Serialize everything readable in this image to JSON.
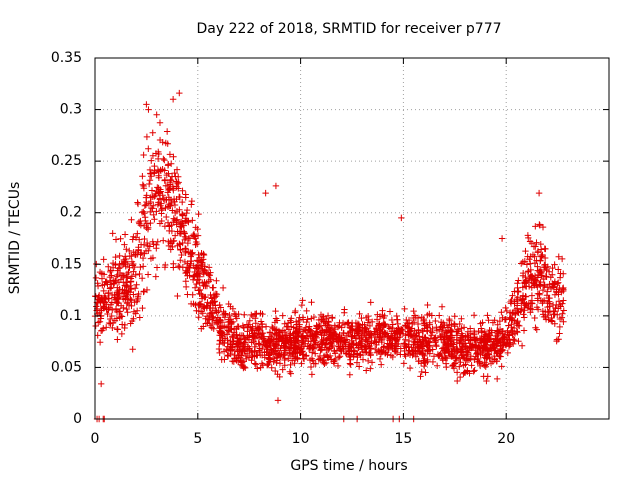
{
  "chart_data": {
    "type": "scatter",
    "title": "Day 222 of 2018, SRMTID for receiver p777",
    "xlabel": "GPS time / hours",
    "ylabel": "SRMTID / TECUs",
    "xlim": [
      0,
      25
    ],
    "ylim": [
      0,
      0.35
    ],
    "x_ticks": [
      0,
      5,
      10,
      15,
      20
    ],
    "x_tick_labels": [
      "0",
      "5",
      "10",
      "15",
      "20"
    ],
    "y_ticks": [
      0,
      0.05,
      0.1,
      0.15,
      0.2,
      0.25,
      0.3,
      0.35
    ],
    "y_tick_labels": [
      "0",
      "0.05",
      "0.1",
      "0.15",
      "0.2",
      "0.25",
      "0.3",
      "0.35"
    ],
    "grid": true,
    "marker": "+",
    "color": "#e00000",
    "series": [
      {
        "name": "SRMTID",
        "profile": {
          "hours": [
            0,
            0.5,
            1,
            1.5,
            2,
            2.5,
            3,
            3.5,
            4,
            4.5,
            5,
            5.5,
            6,
            7,
            8,
            9,
            10,
            11,
            12,
            13,
            14,
            15,
            16,
            17,
            18,
            19,
            19.5,
            20,
            20.5,
            21,
            21.5,
            22,
            22.5,
            22.8
          ],
          "median": [
            0.11,
            0.12,
            0.12,
            0.13,
            0.14,
            0.2,
            0.22,
            0.21,
            0.2,
            0.16,
            0.14,
            0.12,
            0.09,
            0.075,
            0.075,
            0.07,
            0.075,
            0.08,
            0.075,
            0.075,
            0.08,
            0.08,
            0.075,
            0.075,
            0.07,
            0.07,
            0.07,
            0.08,
            0.1,
            0.13,
            0.14,
            0.13,
            0.12,
            0.12
          ],
          "spread": [
            0.03,
            0.035,
            0.04,
            0.04,
            0.05,
            0.06,
            0.06,
            0.05,
            0.045,
            0.04,
            0.035,
            0.03,
            0.025,
            0.022,
            0.022,
            0.022,
            0.022,
            0.022,
            0.022,
            0.022,
            0.022,
            0.022,
            0.022,
            0.022,
            0.02,
            0.02,
            0.02,
            0.025,
            0.03,
            0.035,
            0.04,
            0.035,
            0.035,
            0.03
          ],
          "samples": 2600,
          "x_range": [
            0,
            22.8
          ]
        },
        "notable_points": [
          {
            "x": 2.5,
            "y": 0.305
          },
          {
            "x": 2.6,
            "y": 0.3
          },
          {
            "x": 3.8,
            "y": 0.31
          },
          {
            "x": 4.1,
            "y": 0.316
          },
          {
            "x": 3.0,
            "y": 0.295
          },
          {
            "x": 8.3,
            "y": 0.219
          },
          {
            "x": 8.8,
            "y": 0.226
          },
          {
            "x": 14.9,
            "y": 0.195
          },
          {
            "x": 21.6,
            "y": 0.219
          },
          {
            "x": 19.8,
            "y": 0.175
          },
          {
            "x": 0.3,
            "y": 0.034
          },
          {
            "x": 8.9,
            "y": 0.018
          }
        ],
        "zero_points": [
          0.1,
          0.2,
          0.4,
          0.45,
          12.1,
          12.75,
          14.5,
          14.8,
          15.5
        ]
      }
    ]
  }
}
